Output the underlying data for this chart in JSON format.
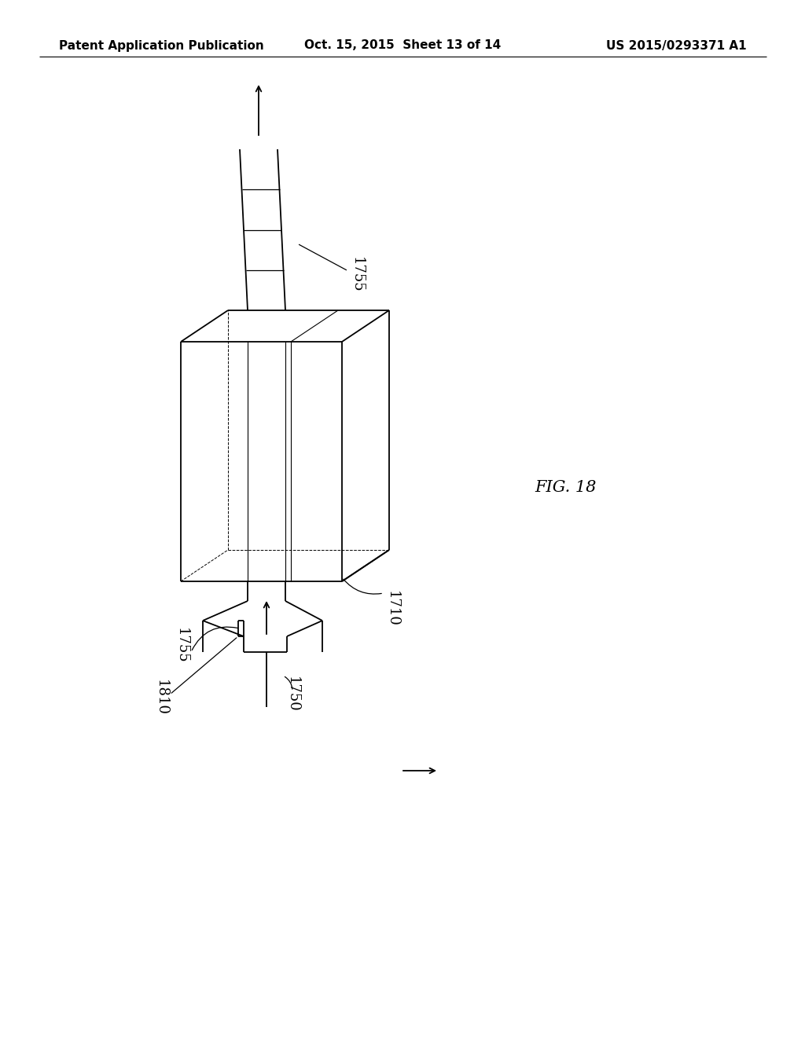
{
  "header_left": "Patent Application Publication",
  "header_middle": "Oct. 15, 2015  Sheet 13 of 14",
  "header_right": "US 2015/0293371 A1",
  "fig_label": "FIG. 18",
  "line_color": "#000000",
  "bg_color": "#ffffff",
  "lw": 1.3
}
